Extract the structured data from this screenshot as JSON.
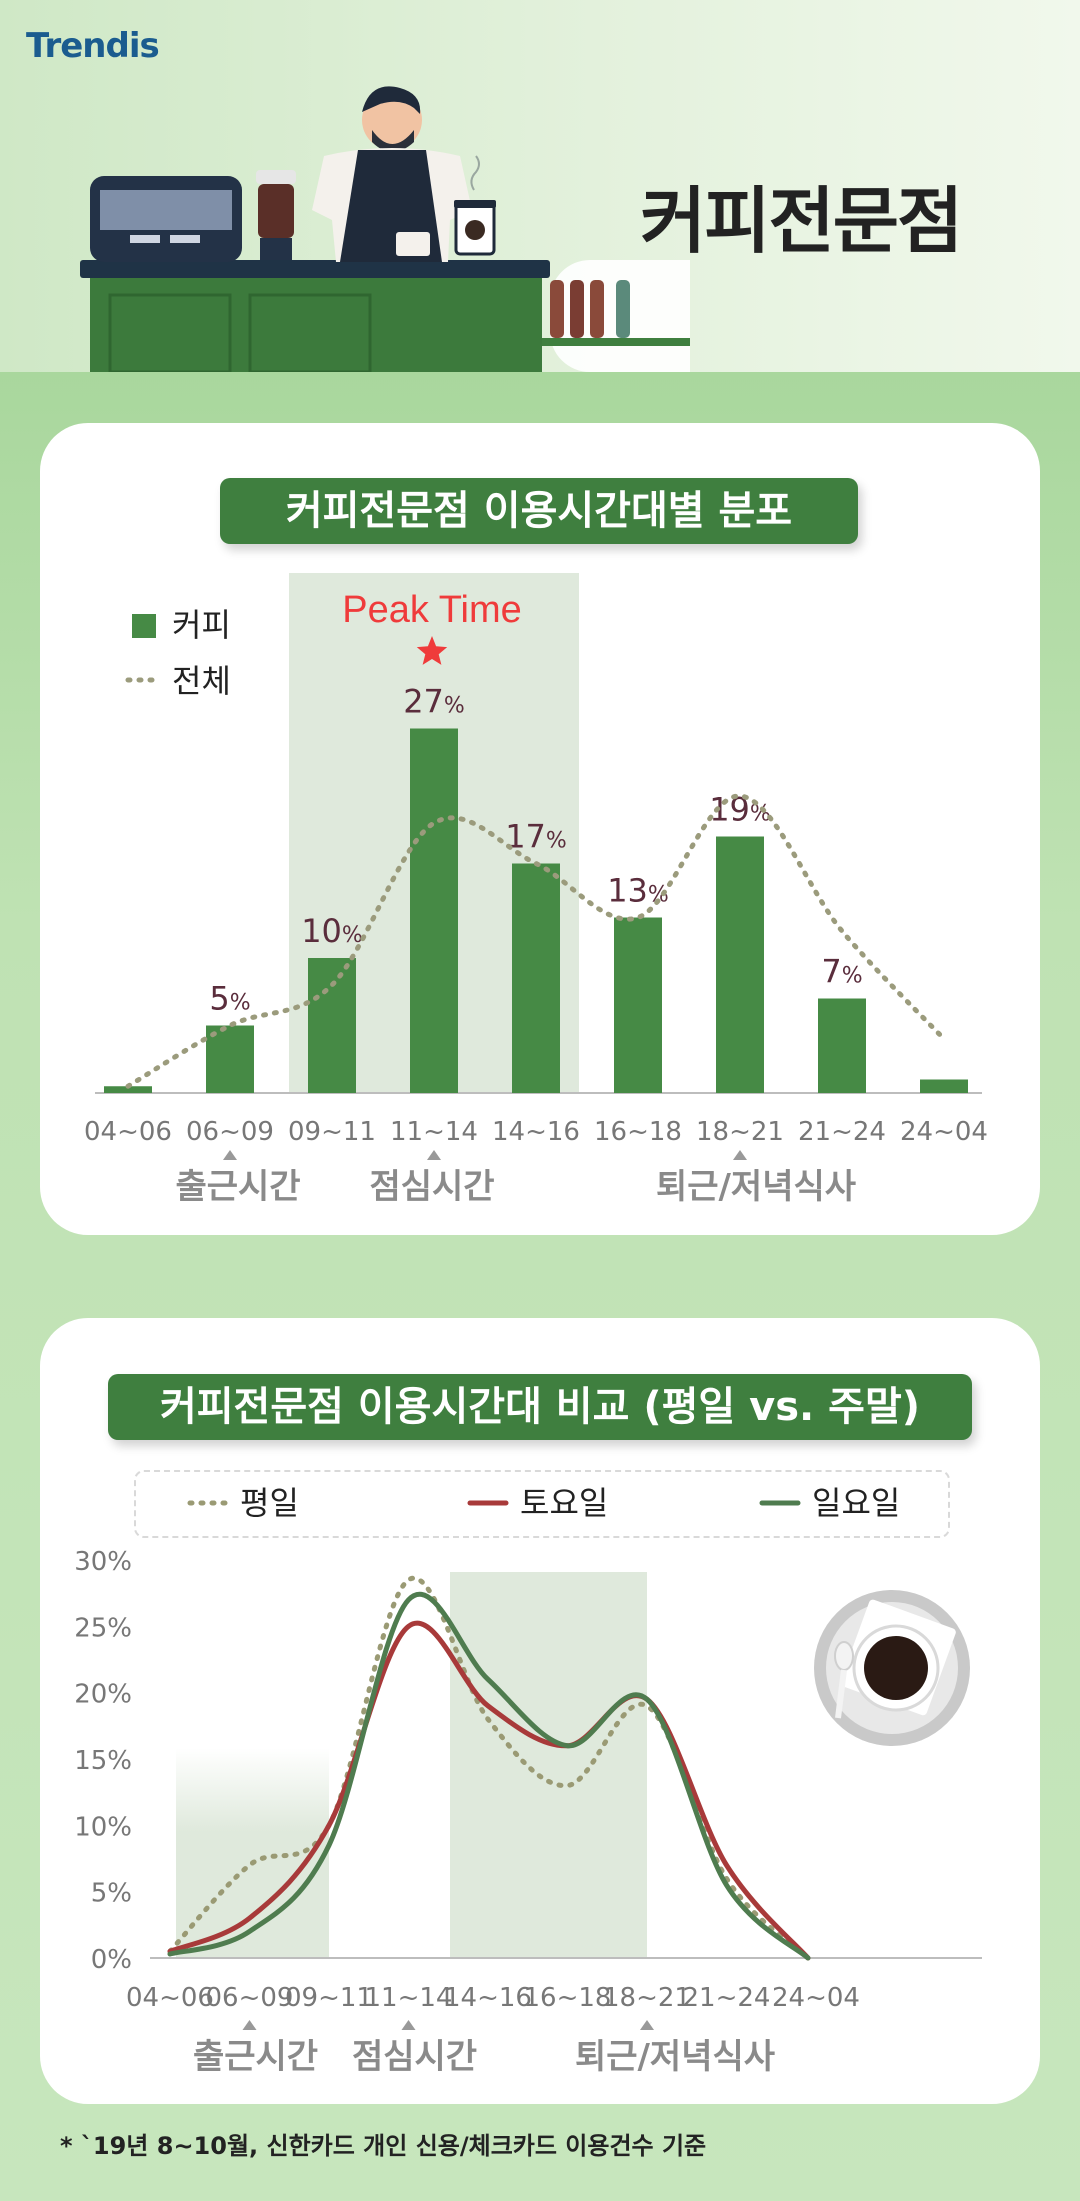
{
  "brand": {
    "logo_text": "Trendis"
  },
  "hero": {
    "title": "커피전문점"
  },
  "chart1": {
    "title": "커피전문점 이용시간대별 분포",
    "peak_label": "Peak Time",
    "legend": {
      "bar": "커피",
      "line": "전체"
    },
    "period_labels": [
      "출근시간",
      "점심시간",
      "퇴근/저녁식사"
    ]
  },
  "chart2": {
    "title": "커피전문점 이용시간대 비교 (평일 vs. 주말)",
    "legend": [
      "평일",
      "토요일",
      "일요일"
    ],
    "period_labels": [
      "출근시간",
      "점심시간",
      "퇴근/저녁식사"
    ]
  },
  "footnote": "* `19년 8~10월, 신한카드 개인 신용/체크카드 이용건수 기준",
  "colors": {
    "green_dark": "#3f7f3f",
    "bar": "#468a45",
    "overall_line": "#9b9b7c",
    "saturday": "#a83a3a",
    "sunday": "#4f7c4f",
    "weekday": "#9a9a74",
    "label_dark": "#5a2d3c",
    "peak": "#ef3b3b",
    "highlight": "#dfe9dc"
  },
  "chart_data": [
    {
      "type": "bar",
      "title": "커피전문점 이용시간대별 분포",
      "categories": [
        "04~06",
        "06~09",
        "09~11",
        "11~14",
        "14~16",
        "16~18",
        "18~21",
        "21~24",
        "24~04"
      ],
      "series": [
        {
          "name": "커피",
          "values": [
            0.5,
            5,
            10,
            27,
            17,
            13,
            19,
            7,
            1
          ],
          "data_labels": [
            "",
            "5%",
            "10%",
            "27%",
            "17%",
            "13%",
            "19%",
            "7%",
            ""
          ]
        },
        {
          "name": "전체",
          "type": "line",
          "style": "dotted",
          "values": [
            0.5,
            5,
            8,
            20,
            17,
            13,
            22,
            12,
            4
          ]
        }
      ],
      "highlight_categories": [
        "09~11",
        "11~14",
        "14~16"
      ],
      "peak_category": "11~14",
      "ylim": [
        0,
        30
      ]
    },
    {
      "type": "line",
      "title": "커피전문점 이용시간대 비교 (평일 vs. 주말)",
      "categories": [
        "04~06",
        "06~09",
        "09~11",
        "11~14",
        "14~16",
        "16~18",
        "18~21",
        "21~24",
        "24~04"
      ],
      "yticks": [
        "0%",
        "5%",
        "10%",
        "15%",
        "20%",
        "25%",
        "30%"
      ],
      "ylim": [
        0,
        30
      ],
      "series": [
        {
          "name": "평일",
          "style": "dotted",
          "values": [
            0.5,
            7,
            10,
            28.5,
            18,
            13,
            19,
            6,
            0
          ]
        },
        {
          "name": "토요일",
          "values": [
            0.5,
            3,
            10,
            25,
            19,
            16,
            19.5,
            7,
            0
          ]
        },
        {
          "name": "일요일",
          "values": [
            0.3,
            2,
            8.5,
            27,
            21,
            16,
            19.5,
            5.5,
            0
          ]
        }
      ],
      "highlight_ranges": [
        [
          "04~06",
          "09~11"
        ],
        [
          "14~16",
          "18~21"
        ]
      ]
    }
  ]
}
